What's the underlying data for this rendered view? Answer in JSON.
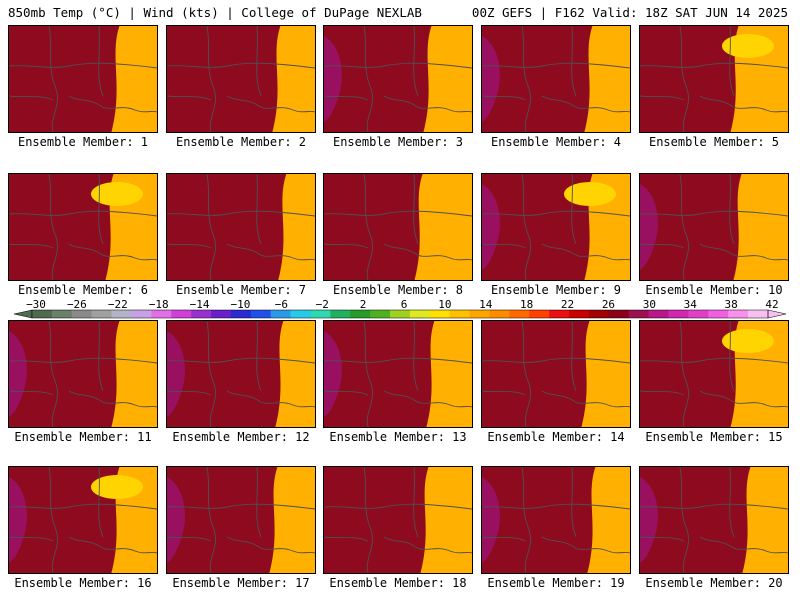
{
  "header": {
    "left": "850mb Temp (°C) | Wind (kts) | College of DuPage NEXLAB",
    "right": "00Z GEFS | F162 Valid: 18Z SAT JUN 14 2025"
  },
  "members": [
    {
      "label": "Ensemble Member: 1"
    },
    {
      "label": "Ensemble Member: 2"
    },
    {
      "label": "Ensemble Member: 3"
    },
    {
      "label": "Ensemble Member: 4"
    },
    {
      "label": "Ensemble Member: 5"
    },
    {
      "label": "Ensemble Member: 6"
    },
    {
      "label": "Ensemble Member: 7"
    },
    {
      "label": "Ensemble Member: 8"
    },
    {
      "label": "Ensemble Member: 9"
    },
    {
      "label": "Ensemble Member: 10"
    },
    {
      "label": "Ensemble Member: 11"
    },
    {
      "label": "Ensemble Member: 12"
    },
    {
      "label": "Ensemble Member: 13"
    },
    {
      "label": "Ensemble Member: 14"
    },
    {
      "label": "Ensemble Member: 15"
    },
    {
      "label": "Ensemble Member: 16"
    },
    {
      "label": "Ensemble Member: 17"
    },
    {
      "label": "Ensemble Member: 18"
    },
    {
      "label": "Ensemble Member: 19"
    },
    {
      "label": "Ensemble Member: 20"
    }
  ],
  "colorbar": {
    "tick_labels": [
      "−30",
      "−26",
      "−22",
      "−18",
      "−14",
      "−10",
      "−6",
      "−2",
      "2",
      "6",
      "10",
      "14",
      "18",
      "22",
      "26",
      "30",
      "34",
      "38",
      "42"
    ],
    "colors": [
      "#4f6b4f",
      "#6b806b",
      "#8a8a8a",
      "#a0a0a0",
      "#b4b4c8",
      "#c8a0e6",
      "#e070e6",
      "#d040d8",
      "#9a30d0",
      "#6a20c8",
      "#2a2ad0",
      "#2050e8",
      "#2a9ae8",
      "#28c8e8",
      "#30d8b0",
      "#20b060",
      "#289a28",
      "#50b020",
      "#a0d020",
      "#e0e820",
      "#ffe000",
      "#ffc000",
      "#ffa500",
      "#ff8c00",
      "#ff6a00",
      "#ff4000",
      "#e81010",
      "#c80000",
      "#a00000",
      "#8a0018",
      "#9a1050",
      "#b81888",
      "#d028b0",
      "#e040c8",
      "#f060e0",
      "#f890ec",
      "#f8c0f0"
    ]
  },
  "map_style": {
    "background": "#ffb000",
    "warm_band_colors": [
      "#8e0a1e",
      "#c00018",
      "#e22010",
      "#ff5000",
      "#ff8a00",
      "#ffa500"
    ],
    "hot_core_color": "#9a1060",
    "cool_spot_color": "#ffd400",
    "boundary_color": "#505050"
  },
  "panel_variants": [
    {
      "hot": 0,
      "west": 0.3,
      "spot": 0
    },
    {
      "hot": 0,
      "west": 0.32,
      "spot": 0
    },
    {
      "hot": 1,
      "west": 0.28,
      "spot": 0
    },
    {
      "hot": 1,
      "west": 0.3,
      "spot": 0
    },
    {
      "hot": 0,
      "west": 0.22,
      "spot": 1
    },
    {
      "hot": 0,
      "west": 0.26,
      "spot": 1
    },
    {
      "hot": 0,
      "west": 0.36,
      "spot": 0
    },
    {
      "hot": 0,
      "west": 0.22,
      "spot": 0
    },
    {
      "hot": 1,
      "west": 0.3,
      "spot": 1
    },
    {
      "hot": 1,
      "west": 0.24,
      "spot": 0
    },
    {
      "hot": 1,
      "west": 0.3,
      "spot": 0
    },
    {
      "hot": 1,
      "west": 0.34,
      "spot": 0
    },
    {
      "hot": 1,
      "west": 0.3,
      "spot": 0
    },
    {
      "hot": 0,
      "west": 0.28,
      "spot": 0
    },
    {
      "hot": 0,
      "west": 0.22,
      "spot": 1
    },
    {
      "hot": 1,
      "west": 0.3,
      "spot": 1
    },
    {
      "hot": 1,
      "west": 0.3,
      "spot": 0
    },
    {
      "hot": 0,
      "west": 0.26,
      "spot": 0
    },
    {
      "hot": 1,
      "west": 0.32,
      "spot": 0
    },
    {
      "hot": 1,
      "west": 0.3,
      "spot": 0
    }
  ]
}
